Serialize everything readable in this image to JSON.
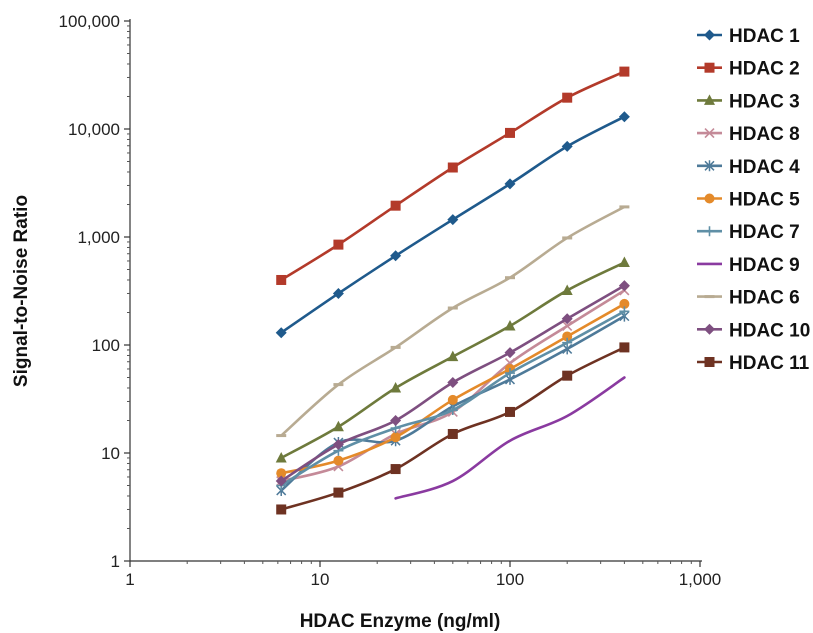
{
  "chart_data": {
    "type": "line",
    "title": "",
    "xlabel": "HDAC Enzyme (ng/ml)",
    "ylabel": "Signal-to-Noise Ratio",
    "xscale": "log",
    "yscale": "log",
    "xlim": [
      1,
      1000
    ],
    "ylim": [
      1,
      100000
    ],
    "x_ticks": [
      1,
      10,
      100,
      1000
    ],
    "x_tick_labels": [
      "1",
      "10",
      "100",
      "1,000"
    ],
    "y_ticks": [
      1,
      10,
      100,
      1000,
      10000,
      100000
    ],
    "y_tick_labels": [
      "1",
      "10",
      "100",
      "1,000",
      "10,000",
      "100,000"
    ],
    "grid": false,
    "legend_position": "right",
    "series": [
      {
        "name": "HDAC 1",
        "color": "#1f5a8c",
        "marker": "diamond",
        "x": [
          6.25,
          12.5,
          25,
          50,
          100,
          200,
          400
        ],
        "y": [
          130,
          300,
          670,
          1450,
          3100,
          6900,
          13000
        ]
      },
      {
        "name": "HDAC 2",
        "color": "#b33a2a",
        "marker": "square",
        "x": [
          6.25,
          12.5,
          25,
          50,
          100,
          200,
          400
        ],
        "y": [
          400,
          850,
          1950,
          4400,
          9200,
          19500,
          34000
        ]
      },
      {
        "name": "HDAC 3",
        "color": "#6e7a3c",
        "marker": "triangle",
        "x": [
          6.25,
          12.5,
          25,
          50,
          100,
          200,
          400
        ],
        "y": [
          9,
          17.5,
          40,
          78,
          150,
          320,
          580
        ]
      },
      {
        "name": "HDAC 8",
        "color": "#c48a98",
        "marker": "x",
        "x": [
          6.25,
          12.5,
          25,
          50,
          100,
          200,
          400
        ],
        "y": [
          5.5,
          7.5,
          15,
          24,
          68,
          150,
          320
        ]
      },
      {
        "name": "HDAC 4",
        "color": "#4e7a99",
        "marker": "asterisk",
        "x": [
          6.25,
          12.5,
          25,
          50,
          100,
          200,
          400
        ],
        "y": [
          4.5,
          12.5,
          13,
          27,
          48,
          92,
          185
        ]
      },
      {
        "name": "HDAC 5",
        "color": "#e48a2a",
        "marker": "circle",
        "x": [
          6.25,
          12.5,
          25,
          50,
          100,
          200,
          400
        ],
        "y": [
          6.5,
          8.5,
          14,
          31,
          60,
          120,
          240
        ]
      },
      {
        "name": "HDAC 7",
        "color": "#5f8fa6",
        "marker": "plus",
        "x": [
          6.25,
          12.5,
          25,
          50,
          100,
          200,
          400
        ],
        "y": [
          5,
          10.5,
          17,
          25,
          55,
          105,
          205
        ]
      },
      {
        "name": "HDAC 9",
        "color": "#8a3aa0",
        "marker": "none",
        "x": [
          25,
          50,
          100,
          200,
          400
        ],
        "y": [
          3.8,
          5.5,
          13,
          22,
          50
        ]
      },
      {
        "name": "HDAC 6",
        "color": "#b8ab92",
        "marker": "dash",
        "x": [
          6.25,
          12.5,
          25,
          50,
          100,
          200,
          400
        ],
        "y": [
          14.5,
          43,
          95,
          220,
          420,
          980,
          1900
        ]
      },
      {
        "name": "HDAC 10",
        "color": "#7e4f80",
        "marker": "diamond",
        "x": [
          6.25,
          12.5,
          25,
          50,
          100,
          200,
          400
        ],
        "y": [
          5.5,
          12,
          20,
          45,
          85,
          175,
          355
        ]
      },
      {
        "name": "HDAC 11",
        "color": "#6e3222",
        "marker": "square",
        "x": [
          6.25,
          12.5,
          25,
          50,
          100,
          200,
          400
        ],
        "y": [
          3,
          4.3,
          7.1,
          15,
          24,
          52,
          95
        ]
      }
    ]
  }
}
